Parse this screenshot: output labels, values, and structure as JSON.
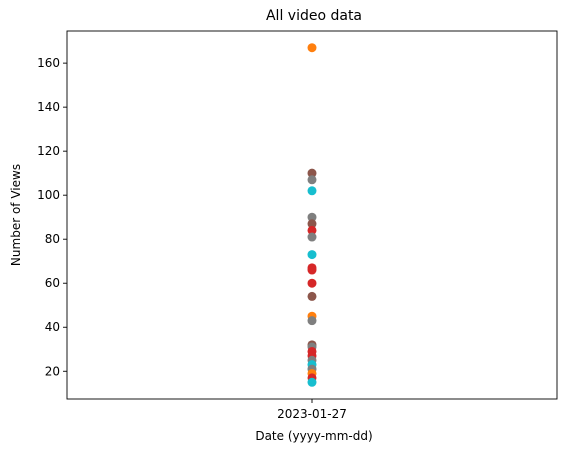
{
  "chart_data": {
    "type": "scatter",
    "title": "All video data",
    "xlabel": "Date (yyyy-mm-dd)",
    "ylabel": "Number of Views",
    "x_categories": [
      "2023-01-27"
    ],
    "ylim": [
      7.4,
      174.6
    ],
    "yticks": [
      20,
      40,
      60,
      80,
      100,
      120,
      140,
      160
    ],
    "grid": false,
    "points": [
      {
        "x": "2023-01-27",
        "y": 167,
        "color": "#ff7f0e"
      },
      {
        "x": "2023-01-27",
        "y": 110,
        "color": "#8c564b"
      },
      {
        "x": "2023-01-27",
        "y": 107,
        "color": "#7f7f7f"
      },
      {
        "x": "2023-01-27",
        "y": 102,
        "color": "#17becf"
      },
      {
        "x": "2023-01-27",
        "y": 90,
        "color": "#7f7f7f"
      },
      {
        "x": "2023-01-27",
        "y": 87,
        "color": "#8c564b"
      },
      {
        "x": "2023-01-27",
        "y": 84,
        "color": "#d62728"
      },
      {
        "x": "2023-01-27",
        "y": 81,
        "color": "#7f7f7f"
      },
      {
        "x": "2023-01-27",
        "y": 73,
        "color": "#17becf"
      },
      {
        "x": "2023-01-27",
        "y": 67,
        "color": "#d62728"
      },
      {
        "x": "2023-01-27",
        "y": 66,
        "color": "#d62728"
      },
      {
        "x": "2023-01-27",
        "y": 60,
        "color": "#d62728"
      },
      {
        "x": "2023-01-27",
        "y": 54,
        "color": "#8c564b"
      },
      {
        "x": "2023-01-27",
        "y": 45,
        "color": "#ff7f0e"
      },
      {
        "x": "2023-01-27",
        "y": 43,
        "color": "#7f7f7f"
      },
      {
        "x": "2023-01-27",
        "y": 32,
        "color": "#8c564b"
      },
      {
        "x": "2023-01-27",
        "y": 31,
        "color": "#7f7f7f"
      },
      {
        "x": "2023-01-27",
        "y": 29,
        "color": "#d62728"
      },
      {
        "x": "2023-01-27",
        "y": 27,
        "color": "#d62728"
      },
      {
        "x": "2023-01-27",
        "y": 25,
        "color": "#7f7f7f"
      },
      {
        "x": "2023-01-27",
        "y": 23,
        "color": "#17becf"
      },
      {
        "x": "2023-01-27",
        "y": 21,
        "color": "#7f7f7f"
      },
      {
        "x": "2023-01-27",
        "y": 19,
        "color": "#ff7f0e"
      },
      {
        "x": "2023-01-27",
        "y": 17,
        "color": "#d62728"
      },
      {
        "x": "2023-01-27",
        "y": 15,
        "color": "#17becf"
      }
    ]
  }
}
